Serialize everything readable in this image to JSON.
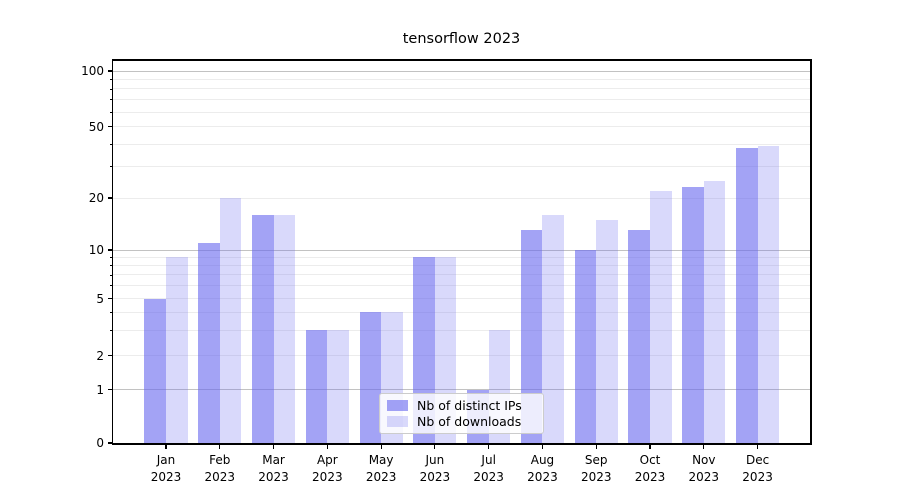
{
  "title": "tensorflow 2023",
  "chart_data": {
    "type": "bar",
    "title": "tensorflow 2023",
    "categories": [
      "Jan 2023",
      "Feb 2023",
      "Mar 2023",
      "Apr 2023",
      "May 2023",
      "Jun 2023",
      "Jul 2023",
      "Aug 2023",
      "Sep 2023",
      "Oct 2023",
      "Nov 2023",
      "Dec 2023"
    ],
    "series": [
      {
        "name": "Nb of distinct IPs",
        "color": "#6666ee",
        "alpha": 0.6,
        "values": [
          5,
          11,
          16,
          3,
          4,
          9,
          1,
          13,
          10,
          13,
          23,
          38
        ]
      },
      {
        "name": "Nb of downloads",
        "color": "#6666ee",
        "alpha": 0.25,
        "values": [
          9,
          20,
          16,
          3,
          4,
          9,
          3,
          16,
          15,
          22,
          25,
          39
        ]
      }
    ],
    "yscale": "asinh",
    "ylim": [
      0,
      115
    ],
    "y_tick_labels": [
      100,
      50,
      20,
      10,
      5,
      2,
      1,
      0
    ],
    "y_major_gridlines": [
      1,
      10,
      100
    ],
    "y_minor_gridlines": [
      2,
      3,
      4,
      5,
      6,
      7,
      8,
      9,
      20,
      30,
      40,
      50,
      60,
      70,
      80,
      90
    ],
    "grid": true,
    "legend_position": "lower center"
  },
  "colors": {
    "major_grid": "#c2c2c2",
    "minor_grid": "#ececec",
    "spine": "#000000",
    "text": "#000000",
    "legend_border": "#cccccc"
  }
}
